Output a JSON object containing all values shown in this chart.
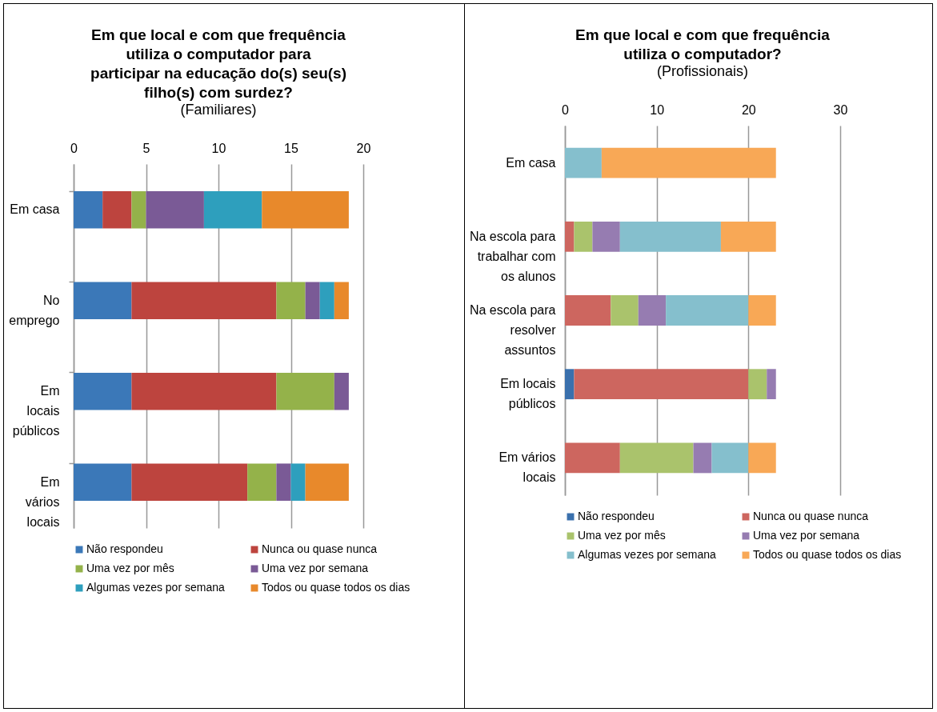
{
  "chart_data": [
    {
      "type": "bar",
      "orientation": "horizontal",
      "stacked": true,
      "title": "Em que local e com que frequência utiliza o computador para participar na educação do(s) seu(s) filho(s) com surdez?",
      "subtitle": "(Familiares)",
      "categories": [
        "Em casa",
        "No emprego",
        "Em locais públicos",
        "Em vários locais"
      ],
      "xlim": [
        0,
        20
      ],
      "xticks": [
        0,
        5,
        10,
        15,
        20
      ],
      "grid": "x",
      "legend": "bottom",
      "series": [
        {
          "name": "Não respondeu",
          "color": "#3b78b8",
          "values": [
            2,
            4,
            4,
            4
          ]
        },
        {
          "name": "Nunca ou quase nunca",
          "color": "#bd443e",
          "values": [
            2,
            10,
            10,
            8
          ]
        },
        {
          "name": "Uma vez por mês",
          "color": "#94b24a",
          "values": [
            1,
            2,
            4,
            2
          ]
        },
        {
          "name": "Uma vez por semana",
          "color": "#7a5a96",
          "values": [
            4,
            1,
            1,
            1
          ]
        },
        {
          "name": "Algumas vezes por semana",
          "color": "#2e9fbd",
          "values": [
            4,
            1,
            0,
            1
          ]
        },
        {
          "name": "Todos ou quase todos os dias",
          "color": "#e8892b",
          "values": [
            6,
            1,
            0,
            3
          ]
        }
      ]
    },
    {
      "type": "bar",
      "orientation": "horizontal",
      "stacked": true,
      "title": "Em que local e com que frequência utiliza o computador?",
      "subtitle": "(Profissionais)",
      "categories": [
        "Em casa",
        "Na escola para trabalhar com os alunos",
        "Na escola para resolver assuntos",
        "Em locais públicos",
        "Em vários locais"
      ],
      "xlim": [
        0,
        30
      ],
      "xticks": [
        0,
        10,
        20,
        30
      ],
      "grid": "x",
      "legend": "bottom",
      "series": [
        {
          "name": "Não respondeu",
          "color": "#3a70ad",
          "values": [
            0,
            0,
            0,
            1,
            0
          ]
        },
        {
          "name": "Nunca ou quase nunca",
          "color": "#cd665f",
          "values": [
            0,
            1,
            5,
            19,
            6
          ]
        },
        {
          "name": "Uma vez por mês",
          "color": "#aac36c",
          "values": [
            0,
            2,
            3,
            2,
            8
          ]
        },
        {
          "name": "Uma vez por semana",
          "color": "#967cb1",
          "values": [
            0,
            3,
            3,
            1,
            2
          ]
        },
        {
          "name": "Algumas vezes por semana",
          "color": "#85bfcd",
          "values": [
            4,
            11,
            9,
            0,
            4
          ]
        },
        {
          "name": "Todos ou quase todos os dias",
          "color": "#f8a856",
          "values": [
            19,
            6,
            3,
            0,
            3
          ]
        }
      ]
    }
  ]
}
